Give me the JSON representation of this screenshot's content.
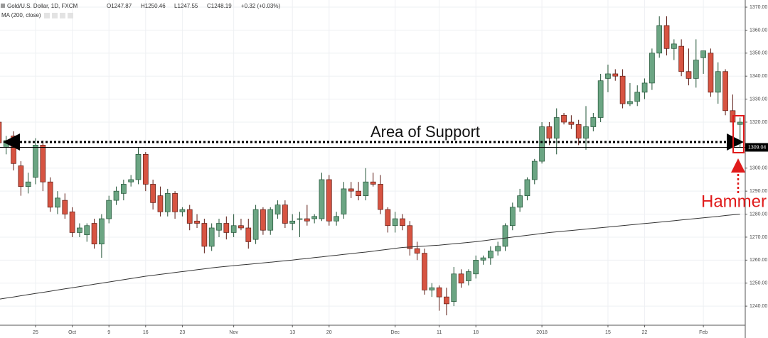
{
  "chart_data": {
    "type": "candlestick",
    "title": "Gold/U.S. Dollar, 1D, FXCM",
    "readout": [
      "O1247.87",
      "H1250.46",
      "L1247.55",
      "C1248.19",
      "+0.32 (+0.03%)"
    ],
    "indicator": "MA (200, close)",
    "annotations": [
      "Area of Support",
      "Hammer"
    ],
    "price_label": 1309.04,
    "up_color": "#6ba583",
    "down_color": "#d75442",
    "up_border": "#225437",
    "down_border": "#5b1a13",
    "grid": true,
    "ylim": [
      1231.7,
      1373.1
    ],
    "yticks": [
      {
        "value": 1240,
        "label": "1240.00"
      },
      {
        "value": 1250,
        "label": "1250.00"
      },
      {
        "value": 1260,
        "label": "1260.00"
      },
      {
        "value": 1270,
        "label": "1270.00"
      },
      {
        "value": 1280,
        "label": "1280.00"
      },
      {
        "value": 1290,
        "label": "1290.00"
      },
      {
        "value": 1300,
        "label": "1300.00"
      },
      {
        "value": 1320,
        "label": "1320.00"
      },
      {
        "value": 1330,
        "label": "1330.00"
      },
      {
        "value": 1340,
        "label": "1340.00"
      },
      {
        "value": 1350,
        "label": "1350.00"
      },
      {
        "value": 1360,
        "label": "1360.00"
      },
      {
        "value": 1370,
        "label": "1370.00"
      }
    ],
    "categories": [
      null,
      null,
      null,
      null,
      null,
      "25",
      null,
      null,
      null,
      null,
      "Oct",
      null,
      null,
      null,
      null,
      "9",
      null,
      null,
      null,
      null,
      "16",
      null,
      null,
      null,
      null,
      "23",
      null,
      null,
      null,
      null,
      null,
      null,
      "Nov",
      null,
      null,
      null,
      null,
      null,
      null,
      null,
      "13",
      null,
      null,
      null,
      null,
      "20",
      null,
      null,
      null,
      null,
      null,
      null,
      null,
      null,
      "Dec",
      null,
      null,
      null,
      null,
      null,
      "11",
      null,
      null,
      null,
      null,
      "18",
      null,
      null,
      null,
      null,
      null,
      null,
      null,
      null,
      "2018",
      null,
      null,
      null,
      null,
      null,
      null,
      null,
      null,
      "15",
      null,
      null,
      null,
      null,
      "22",
      null,
      null,
      null,
      null,
      null,
      null,
      null,
      "Feb",
      null,
      null,
      null,
      null,
      null
    ],
    "open": [
      1320,
      1309,
      1314,
      1301,
      1292,
      1296,
      1310,
      1294,
      1283,
      1286,
      1281,
      1272,
      1271,
      1276,
      1267,
      1278,
      1286,
      1289,
      1294,
      1295,
      1306,
      1293,
      1288,
      1281,
      1289,
      1281,
      1282,
      1277,
      1276,
      1266,
      1273,
      1276,
      1272,
      1275,
      1274,
      1269,
      1282,
      1273,
      1280,
      1284,
      1276,
      1278,
      1278,
      1278,
      1278,
      1295,
      1277,
      1280,
      1291,
      1290,
      1288,
      1294,
      1293,
      1282,
      1275,
      1278,
      1275,
      1265,
      1263,
      1247,
      1248,
      1244,
      1242,
      1254,
      1251,
      1254,
      1260,
      1261,
      1264,
      1266,
      1275,
      1283,
      1288,
      1295,
      1303,
      1318,
      1313,
      1323,
      1320,
      1319,
      1313,
      1318,
      1322,
      1339,
      1341,
      1340,
      1328,
      1329,
      1333,
      1337,
      1350,
      1362,
      1352,
      1353,
      1342,
      1339,
      1348,
      1350,
      1333,
      1342,
      1325,
      1319
    ],
    "high": [
      1321,
      1314,
      1316,
      1303,
      1298,
      1313,
      1312,
      1296,
      1290,
      1289,
      1283,
      1276,
      1276,
      1278,
      1280,
      1288,
      1292,
      1295,
      1297,
      1309,
      1307,
      1295,
      1292,
      1291,
      1290,
      1283,
      1284,
      1280,
      1278,
      1276,
      1278,
      1279,
      1280,
      1278,
      1278,
      1284,
      1283,
      1283,
      1286,
      1286,
      1280,
      1281,
      1284,
      1280,
      1298,
      1297,
      1281,
      1294,
      1294,
      1294,
      1300,
      1298,
      1297,
      1283,
      1281,
      1280,
      1277,
      1268,
      1265,
      1250,
      1249,
      1248,
      1257,
      1256,
      1256,
      1262,
      1262,
      1266,
      1268,
      1276,
      1285,
      1291,
      1296,
      1304,
      1320,
      1320,
      1326,
      1324,
      1323,
      1321,
      1327,
      1324,
      1341,
      1345,
      1343,
      1343,
      1337,
      1336,
      1339,
      1352,
      1366,
      1366,
      1356,
      1356,
      1352,
      1356,
      1351,
      1352,
      1346,
      1343,
      1332,
      1322
    ],
    "low": [
      1309,
      1306,
      1299,
      1288,
      1289,
      1293,
      1290,
      1281,
      1280,
      1278,
      1270,
      1270,
      1268,
      1265,
      1261,
      1276,
      1284,
      1286,
      1292,
      1293,
      1290,
      1282,
      1279,
      1279,
      1278,
      1279,
      1273,
      1274,
      1263,
      1264,
      1270,
      1269,
      1270,
      1273,
      1265,
      1267,
      1271,
      1271,
      1278,
      1274,
      1273,
      1270,
      1275,
      1276,
      1277,
      1275,
      1275,
      1278,
      1287,
      1286,
      1286,
      1292,
      1280,
      1272,
      1272,
      1273,
      1262,
      1260,
      1245,
      1244,
      1238,
      1236,
      1240,
      1248,
      1249,
      1252,
      1258,
      1258,
      1262,
      1264,
      1273,
      1281,
      1286,
      1293,
      1302,
      1310,
      1306,
      1319,
      1317,
      1310,
      1308,
      1316,
      1320,
      1333,
      1338,
      1326,
      1327,
      1327,
      1330,
      1334,
      1348,
      1349,
      1347,
      1340,
      1336,
      1335,
      1341,
      1331,
      1328,
      1323,
      1318,
      1309
    ],
    "close": [
      1311,
      1312,
      1302,
      1292,
      1294,
      1310,
      1294,
      1283,
      1287,
      1280,
      1272,
      1274,
      1275,
      1267,
      1278,
      1286,
      1290,
      1293,
      1295,
      1306,
      1293,
      1285,
      1281,
      1289,
      1281,
      1282,
      1276,
      1276,
      1266,
      1274,
      1276,
      1272,
      1275,
      1274,
      1268,
      1282,
      1273,
      1282,
      1284,
      1276,
      1277,
      1278,
      1277,
      1279,
      1295,
      1277,
      1279,
      1291,
      1290,
      1288,
      1294,
      1293,
      1282,
      1275,
      1278,
      1275,
      1265,
      1263,
      1247,
      1248,
      1244,
      1241,
      1254,
      1250,
      1255,
      1260,
      1261,
      1264,
      1266,
      1275,
      1283,
      1288,
      1295,
      1303,
      1318,
      1313,
      1322,
      1320,
      1319,
      1313,
      1318,
      1322,
      1338,
      1341,
      1340,
      1328,
      1329,
      1333,
      1337,
      1350,
      1362,
      1352,
      1354,
      1342,
      1339,
      1347,
      1351,
      1333,
      1342,
      1325,
      1320,
      1320
    ],
    "ma": {
      "name": "MA (200, close)",
      "color": "#333333",
      "values": [
        1243,
        1243.5,
        1244,
        1244.5,
        1245,
        1245.5,
        1246,
        1246.5,
        1247,
        1247.5,
        1248,
        1248.5,
        1249,
        1249.5,
        1250,
        1250.5,
        1251,
        1251.5,
        1252,
        1252.5,
        1253,
        1253.4,
        1253.8,
        1254.2,
        1254.6,
        1255,
        1255.4,
        1255.8,
        1256.2,
        1256.6,
        1257,
        1257.3,
        1257.6,
        1257.9,
        1258.2,
        1258.5,
        1258.8,
        1259.1,
        1259.4,
        1259.7,
        1260,
        1260.4,
        1260.7,
        1261.1,
        1261.4,
        1261.8,
        1262.1,
        1262.5,
        1262.8,
        1263.2,
        1263.5,
        1263.9,
        1264.3,
        1264.7,
        1265.1,
        1265.5,
        1265.7,
        1265.9,
        1266.1,
        1266.3,
        1266.5,
        1266.8,
        1267.1,
        1267.4,
        1267.7,
        1268,
        1268.4,
        1268.8,
        1269.2,
        1269.6,
        1270,
        1270.4,
        1270.8,
        1271.2,
        1271.6,
        1272,
        1272.3,
        1272.6,
        1272.9,
        1273.2,
        1273.5,
        1273.8,
        1274.1,
        1274.4,
        1274.7,
        1275,
        1275.3,
        1275.6,
        1275.9,
        1276.2,
        1276.5,
        1276.8,
        1277.1,
        1277.5,
        1277.8,
        1278.1,
        1278.4,
        1278.7,
        1279,
        1279.4,
        1279.7,
        1280
      ]
    }
  }
}
